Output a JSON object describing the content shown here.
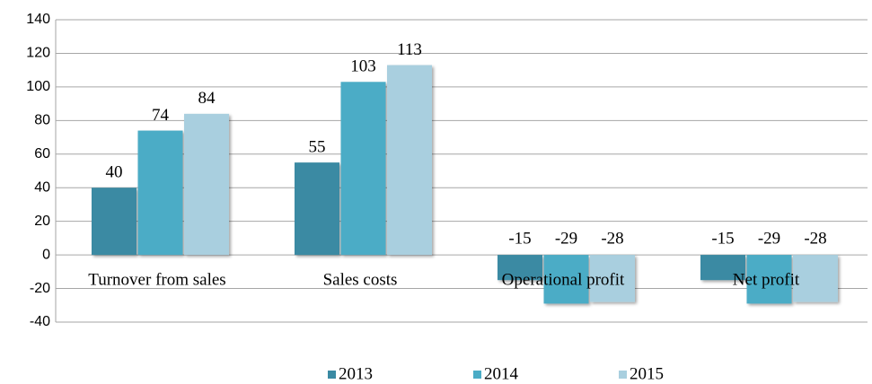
{
  "chart_data": {
    "type": "bar",
    "categories": [
      "Turnover from sales",
      "Sales costs",
      "Operational profit",
      "Net profit"
    ],
    "series": [
      {
        "name": "2013",
        "color": "#3a8aa3",
        "values": [
          40,
          55,
          -15,
          -15
        ]
      },
      {
        "name": "2014",
        "color": "#4bacc6",
        "values": [
          74,
          103,
          -29,
          -29
        ]
      },
      {
        "name": "2015",
        "color": "#a9cfdf",
        "values": [
          84,
          113,
          -28,
          -28
        ]
      }
    ],
    "ylim": [
      -40,
      140
    ],
    "yticks": [
      -40,
      -20,
      0,
      20,
      40,
      60,
      80,
      100,
      120,
      140
    ],
    "grid": true,
    "legend": "bottom"
  }
}
